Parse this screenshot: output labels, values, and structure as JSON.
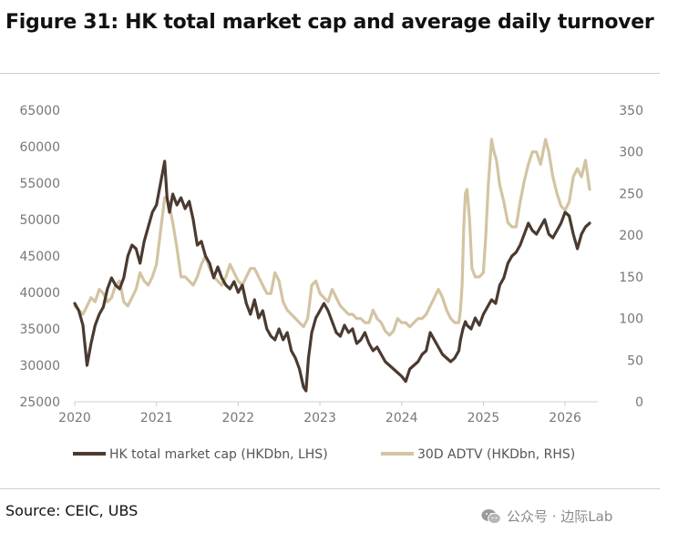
{
  "figure": {
    "title": "Figure 31: HK total market cap and average daily turnover",
    "source": "Source: CEIC, UBS",
    "watermark": "公众号 · 边际Lab",
    "watermark_icon": "wechat-logo-icon"
  },
  "colors": {
    "market_cap": "#4a3a30",
    "adtv": "#d3c4a2",
    "axis": "#cfcfcf",
    "tick_text": "#777777"
  },
  "chart_data": {
    "type": "line",
    "title": "Figure 31: HK total market cap and average daily turnover",
    "x_ticks": [
      "2020",
      "2021",
      "2022",
      "2023",
      "2024",
      "2025",
      "2026"
    ],
    "xlim": [
      2020.0,
      2026.4
    ],
    "left_axis": {
      "ylim": [
        25000,
        65000
      ],
      "ticks": [
        "25000",
        "30000",
        "35000",
        "40000",
        "45000",
        "50000",
        "55000",
        "60000",
        "65000"
      ]
    },
    "right_axis": {
      "ylim": [
        0,
        350
      ],
      "ticks": [
        "0",
        "50",
        "100",
        "150",
        "200",
        "250",
        "300",
        "350"
      ]
    },
    "legend_position": "bottom",
    "grid": false,
    "series": [
      {
        "name": "HK total market cap (HKDbn, LHS)",
        "axis": "left",
        "x": [
          2020.0,
          2020.05,
          2020.1,
          2020.15,
          2020.2,
          2020.25,
          2020.3,
          2020.35,
          2020.4,
          2020.45,
          2020.5,
          2020.55,
          2020.6,
          2020.65,
          2020.7,
          2020.75,
          2020.8,
          2020.85,
          2020.9,
          2020.95,
          2021.0,
          2021.05,
          2021.1,
          2021.13,
          2021.16,
          2021.2,
          2021.25,
          2021.3,
          2021.35,
          2021.4,
          2021.45,
          2021.5,
          2021.55,
          2021.6,
          2021.65,
          2021.7,
          2021.75,
          2021.8,
          2021.85,
          2021.9,
          2021.95,
          2022.0,
          2022.05,
          2022.1,
          2022.15,
          2022.2,
          2022.25,
          2022.3,
          2022.35,
          2022.4,
          2022.45,
          2022.5,
          2022.55,
          2022.6,
          2022.65,
          2022.7,
          2022.75,
          2022.8,
          2022.83,
          2022.86,
          2022.9,
          2022.95,
          2023.0,
          2023.05,
          2023.1,
          2023.15,
          2023.2,
          2023.25,
          2023.3,
          2023.35,
          2023.4,
          2023.45,
          2023.5,
          2023.55,
          2023.6,
          2023.65,
          2023.7,
          2023.75,
          2023.8,
          2023.85,
          2023.9,
          2023.95,
          2024.0,
          2024.05,
          2024.1,
          2024.15,
          2024.2,
          2024.25,
          2024.3,
          2024.35,
          2024.4,
          2024.45,
          2024.5,
          2024.55,
          2024.6,
          2024.65,
          2024.7,
          2024.72,
          2024.75,
          2024.78,
          2024.8,
          2024.85,
          2024.9,
          2024.95,
          2025.0,
          2025.05,
          2025.1,
          2025.15,
          2025.2,
          2025.25,
          2025.3,
          2025.35,
          2025.4,
          2025.45,
          2025.5,
          2025.55,
          2025.6,
          2025.65,
          2025.7,
          2025.75,
          2025.8,
          2025.85,
          2025.9,
          2025.95,
          2026.0,
          2026.05,
          2026.1,
          2026.15,
          2026.2,
          2026.25,
          2026.3
        ],
        "values": [
          38500,
          37500,
          35500,
          30000,
          33000,
          35500,
          37000,
          38000,
          40500,
          42000,
          41000,
          40500,
          42000,
          45000,
          46500,
          46000,
          44000,
          47000,
          49000,
          51000,
          52000,
          55000,
          58000,
          53000,
          51000,
          53500,
          52000,
          53000,
          51500,
          52500,
          50000,
          46500,
          47000,
          45000,
          44000,
          42000,
          43500,
          42000,
          41000,
          40500,
          41500,
          40000,
          41000,
          38500,
          37000,
          39000,
          36500,
          37500,
          35000,
          34000,
          33500,
          35000,
          33500,
          34500,
          32000,
          31000,
          29500,
          27000,
          26500,
          31000,
          34500,
          36500,
          37500,
          38500,
          37500,
          36000,
          34500,
          34000,
          35500,
          34500,
          35000,
          33000,
          33500,
          34500,
          33000,
          32000,
          32500,
          31500,
          30500,
          30000,
          29500,
          29000,
          28500,
          27800,
          29500,
          30000,
          30500,
          31500,
          32000,
          34500,
          33500,
          32500,
          31500,
          31000,
          30500,
          31000,
          32000,
          33500,
          35000,
          36000,
          35500,
          35000,
          36500,
          35500,
          37000,
          38000,
          39000,
          38500,
          41000,
          42000,
          44000,
          45000,
          45500,
          46500,
          48000,
          49500,
          48500,
          48000,
          49000,
          50000,
          48000,
          47500,
          48500,
          49500,
          51000,
          50500,
          48000,
          46000,
          48000,
          49000,
          49500
        ]
      },
      {
        "name": "30D ADTV (HKDbn, RHS)",
        "axis": "right",
        "x": [
          2020.0,
          2020.05,
          2020.1,
          2020.15,
          2020.2,
          2020.25,
          2020.3,
          2020.35,
          2020.4,
          2020.45,
          2020.5,
          2020.55,
          2020.6,
          2020.65,
          2020.7,
          2020.75,
          2020.8,
          2020.85,
          2020.9,
          2020.95,
          2021.0,
          2021.05,
          2021.1,
          2021.15,
          2021.2,
          2021.25,
          2021.3,
          2021.35,
          2021.4,
          2021.45,
          2021.5,
          2021.55,
          2021.6,
          2021.65,
          2021.7,
          2021.75,
          2021.8,
          2021.85,
          2021.9,
          2021.95,
          2022.0,
          2022.05,
          2022.1,
          2022.15,
          2022.2,
          2022.25,
          2022.3,
          2022.35,
          2022.4,
          2022.45,
          2022.5,
          2022.55,
          2022.6,
          2022.65,
          2022.7,
          2022.75,
          2022.8,
          2022.85,
          2022.9,
          2022.95,
          2023.0,
          2023.05,
          2023.1,
          2023.15,
          2023.2,
          2023.25,
          2023.3,
          2023.35,
          2023.4,
          2023.45,
          2023.5,
          2023.55,
          2023.6,
          2023.65,
          2023.7,
          2023.75,
          2023.8,
          2023.85,
          2023.9,
          2023.95,
          2024.0,
          2024.05,
          2024.1,
          2024.15,
          2024.2,
          2024.25,
          2024.3,
          2024.35,
          2024.4,
          2024.45,
          2024.5,
          2024.55,
          2024.6,
          2024.65,
          2024.7,
          2024.72,
          2024.74,
          2024.76,
          2024.78,
          2024.8,
          2024.83,
          2024.86,
          2024.9,
          2024.95,
          2025.0,
          2025.03,
          2025.06,
          2025.1,
          2025.13,
          2025.16,
          2025.2,
          2025.25,
          2025.3,
          2025.35,
          2025.4,
          2025.45,
          2025.5,
          2025.55,
          2025.6,
          2025.65,
          2025.7,
          2025.73,
          2025.76,
          2025.8,
          2025.85,
          2025.9,
          2025.95,
          2026.0,
          2026.05,
          2026.1,
          2026.15,
          2026.2,
          2026.25,
          2026.3
        ],
        "values": [
          115,
          110,
          105,
          115,
          125,
          120,
          135,
          130,
          120,
          125,
          140,
          145,
          120,
          115,
          125,
          135,
          155,
          145,
          140,
          150,
          165,
          205,
          245,
          240,
          215,
          185,
          150,
          150,
          145,
          140,
          150,
          165,
          175,
          160,
          150,
          145,
          140,
          150,
          165,
          155,
          145,
          140,
          150,
          160,
          160,
          150,
          140,
          130,
          130,
          155,
          145,
          120,
          110,
          105,
          100,
          95,
          90,
          100,
          140,
          145,
          130,
          125,
          120,
          135,
          125,
          115,
          110,
          105,
          105,
          100,
          100,
          95,
          95,
          110,
          100,
          95,
          85,
          80,
          85,
          100,
          95,
          95,
          90,
          95,
          100,
          100,
          105,
          115,
          125,
          135,
          125,
          110,
          100,
          95,
          95,
          110,
          140,
          210,
          250,
          255,
          220,
          160,
          150,
          150,
          155,
          200,
          260,
          315,
          300,
          290,
          260,
          240,
          215,
          210,
          210,
          240,
          265,
          285,
          300,
          300,
          285,
          300,
          315,
          300,
          270,
          250,
          235,
          230,
          240,
          270,
          280,
          270,
          290,
          255
        ]
      }
    ]
  }
}
